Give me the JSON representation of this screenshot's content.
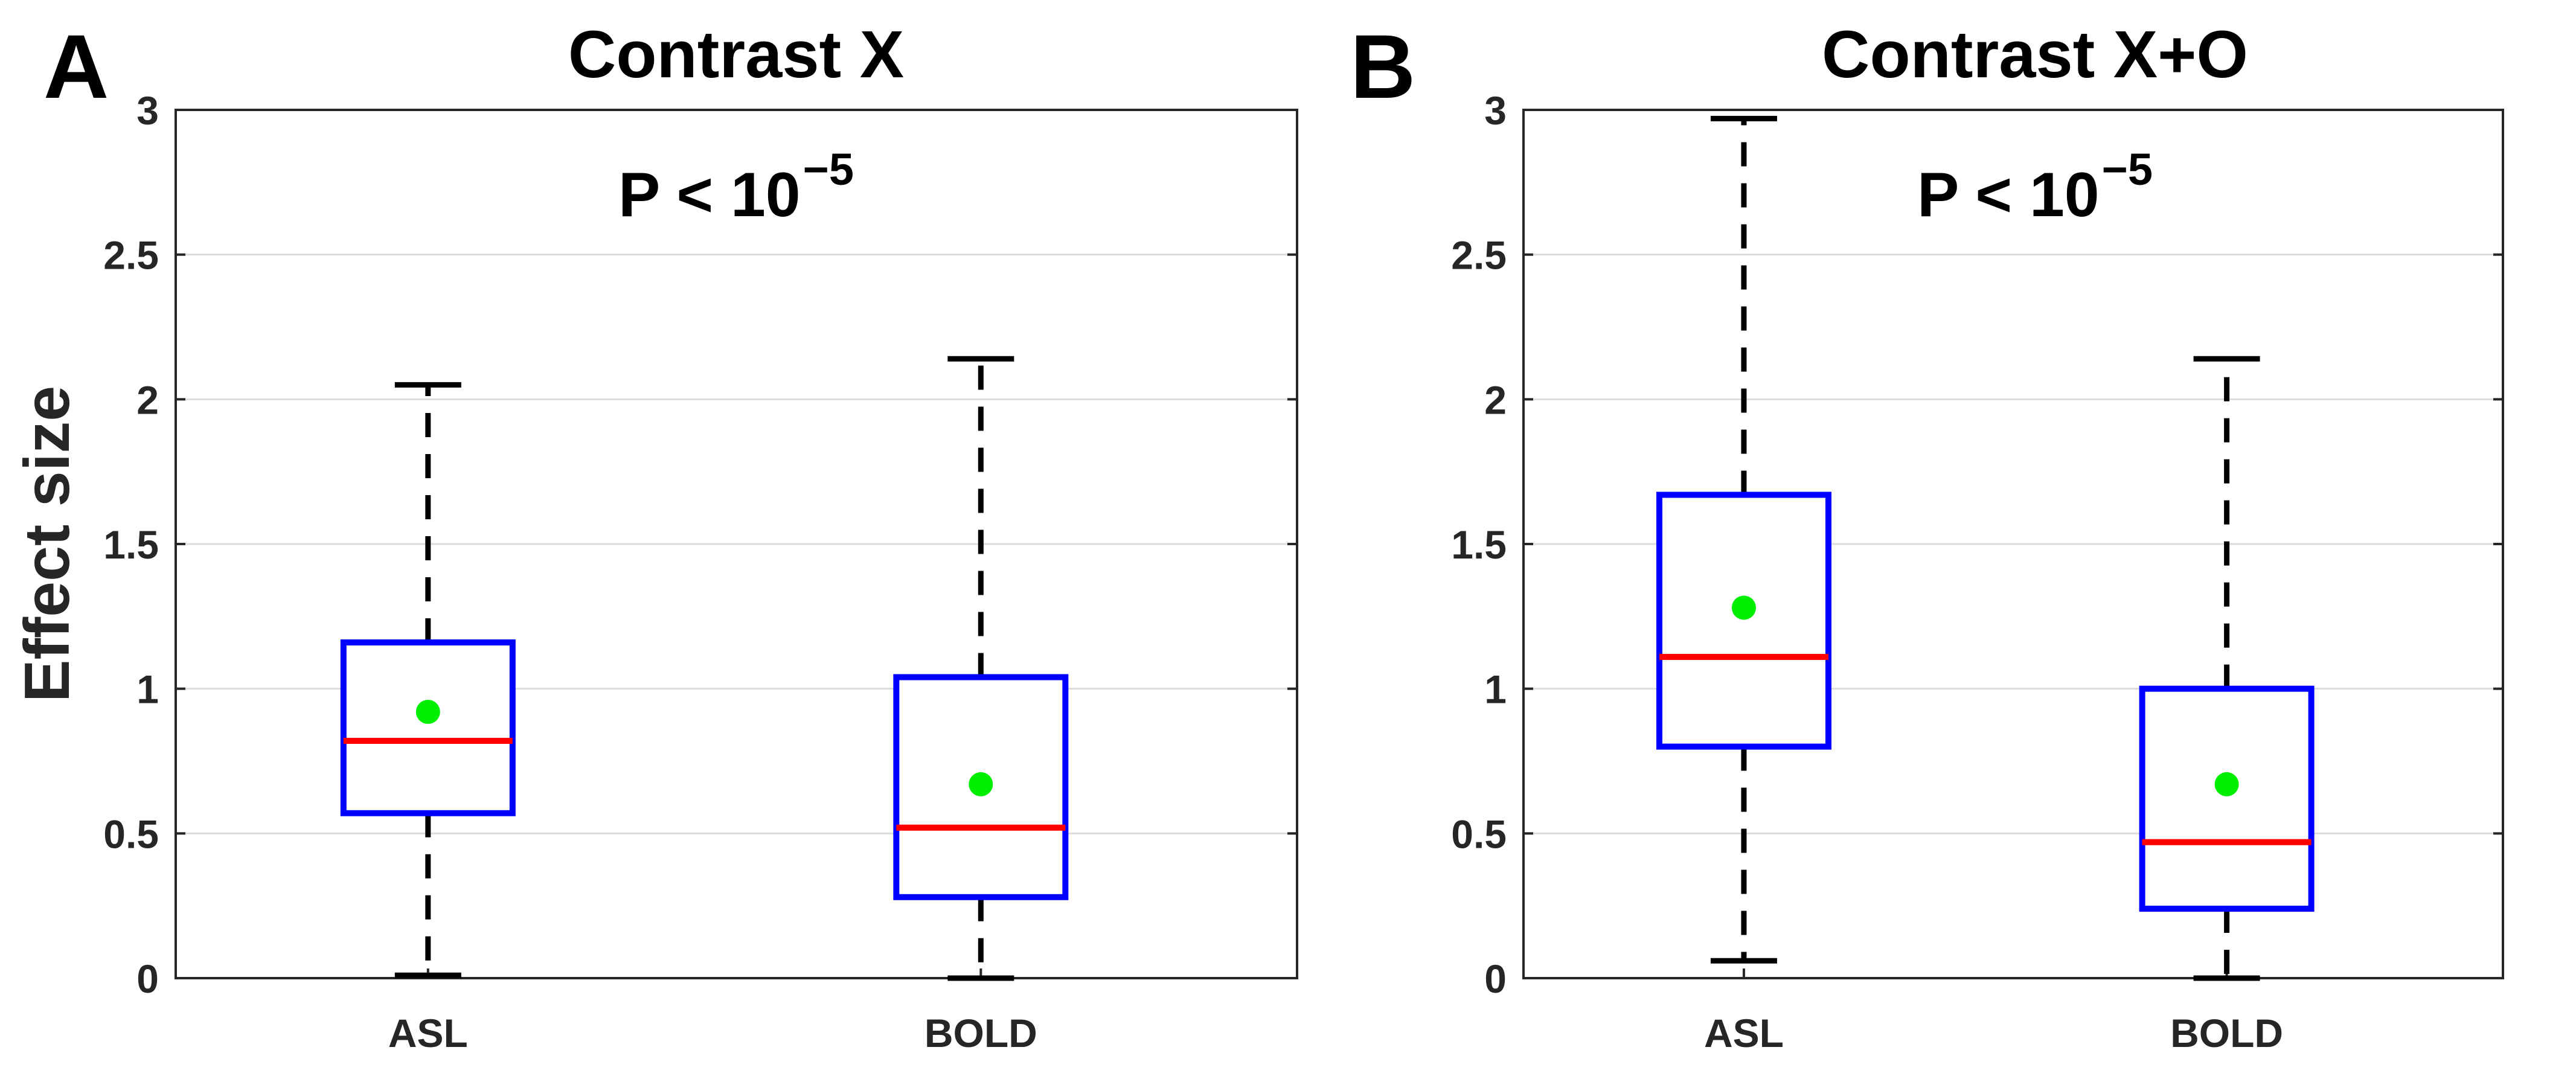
{
  "chart_data": [
    {
      "type": "box",
      "panel_label": "A",
      "title": "Contrast X",
      "annotation": {
        "prefix": "P < 10",
        "exponent": "−5"
      },
      "ylabel": "Effect size",
      "xlabel": "",
      "ylim": [
        0,
        3
      ],
      "yticks": [
        0,
        0.5,
        1,
        1.5,
        2,
        2.5,
        3
      ],
      "ytick_labels": [
        "0",
        "0.5",
        "1",
        "1.5",
        "2",
        "2.5",
        "3"
      ],
      "grid": "horizontal",
      "categories": [
        "ASL",
        "BOLD"
      ],
      "boxes": [
        {
          "name": "ASL",
          "whisker_low": 0.01,
          "q1": 0.57,
          "median": 0.82,
          "q3": 1.16,
          "whisker_high": 2.05,
          "mean": 0.92
        },
        {
          "name": "BOLD",
          "whisker_low": 0.0,
          "q1": 0.28,
          "median": 0.52,
          "q3": 1.04,
          "whisker_high": 2.14,
          "mean": 0.67
        }
      ]
    },
    {
      "type": "box",
      "panel_label": "B",
      "title": "Contrast X+O",
      "annotation": {
        "prefix": "P < 10",
        "exponent": "−5"
      },
      "ylabel": "",
      "xlabel": "",
      "ylim": [
        0,
        3
      ],
      "yticks": [
        0,
        0.5,
        1,
        1.5,
        2,
        2.5,
        3
      ],
      "ytick_labels": [
        "0",
        "0.5",
        "1",
        "1.5",
        "2",
        "2.5",
        "3"
      ],
      "grid": "horizontal",
      "categories": [
        "ASL",
        "BOLD"
      ],
      "boxes": [
        {
          "name": "ASL",
          "whisker_low": 0.06,
          "q1": 0.8,
          "median": 1.11,
          "q3": 1.67,
          "whisker_high": 2.97,
          "mean": 1.28
        },
        {
          "name": "BOLD",
          "whisker_low": 0.0,
          "q1": 0.24,
          "median": 0.47,
          "q3": 1.0,
          "whisker_high": 2.14,
          "mean": 0.67
        }
      ]
    }
  ],
  "colors": {
    "box": "#0000ff",
    "median": "#ff0000",
    "mean": "#00ee00",
    "whisker": "#000000",
    "axis": "#262626",
    "grid": "#dcdcdc"
  }
}
